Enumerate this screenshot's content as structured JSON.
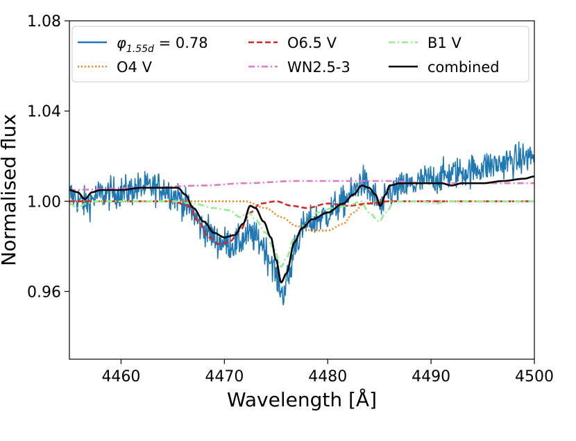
{
  "chart_data": {
    "type": "line",
    "title": "",
    "xlabel": "Wavelength [Å]",
    "ylabel": "Normalised flux",
    "xlim": [
      4455,
      4500
    ],
    "ylim": [
      0.93,
      1.08
    ],
    "xticks": [
      4460,
      4470,
      4480,
      4490,
      4500
    ],
    "xtick_labels": [
      "4460",
      "4470",
      "4480",
      "4490",
      "4500"
    ],
    "yticks": [
      0.96,
      1.0,
      1.04,
      1.08
    ],
    "ytick_labels": [
      "0.96",
      "1.00",
      "1.04",
      "1.08"
    ],
    "grid": false,
    "legend_position": "top",
    "series": [
      {
        "name": "φ1.55d = 0.78",
        "legend_main": "φ",
        "legend_sub": "1.55d",
        "legend_rest": " = 0.78",
        "color": "#1f77b4",
        "style": "solid",
        "kind": "noisy-observed",
        "anchors": [
          [
            4455,
            1.003
          ],
          [
            4456.5,
            0.999
          ],
          [
            4458,
            1.003
          ],
          [
            4460,
            1.004
          ],
          [
            4462,
            1.006
          ],
          [
            4464,
            1.006
          ],
          [
            4465.5,
            1.002
          ],
          [
            4466.5,
            0.997
          ],
          [
            4468,
            0.988
          ],
          [
            4469.5,
            0.982
          ],
          [
            4471,
            0.981
          ],
          [
            4472.5,
            0.985
          ],
          [
            4473.5,
            0.982
          ],
          [
            4474.5,
            0.974
          ],
          [
            4475.2,
            0.965
          ],
          [
            4475.6,
            0.959
          ],
          [
            4476.2,
            0.966
          ],
          [
            4477,
            0.983
          ],
          [
            4478,
            0.99
          ],
          [
            4479.5,
            0.993
          ],
          [
            4481,
            0.998
          ],
          [
            4482.3,
            1.003
          ],
          [
            4483.3,
            1.009
          ],
          [
            4484.3,
            1.003
          ],
          [
            4485.2,
            0.997
          ],
          [
            4486,
            1.004
          ],
          [
            4488,
            1.007
          ],
          [
            4490,
            1.01
          ],
          [
            4493,
            1.013
          ],
          [
            4496,
            1.016
          ],
          [
            4498,
            1.018
          ],
          [
            4500,
            1.02
          ]
        ],
        "noise_amplitude": 0.008,
        "points": 900
      },
      {
        "name": "O4 V",
        "color": "#ff7f0e",
        "style": "dotted",
        "kind": "model",
        "points_data": [
          [
            4455,
            1.0
          ],
          [
            4472,
            1.0
          ],
          [
            4474,
            0.997
          ],
          [
            4475.5,
            0.993
          ],
          [
            4477,
            0.989
          ],
          [
            4478.5,
            0.987
          ],
          [
            4480,
            0.987
          ],
          [
            4481.5,
            0.99
          ],
          [
            4482.5,
            0.995
          ],
          [
            4483.5,
            0.999
          ],
          [
            4485,
            1.0
          ],
          [
            4500,
            1.0
          ]
        ]
      },
      {
        "name": "O6.5 V",
        "color": "#d62728",
        "style": "dashed",
        "kind": "model",
        "points_data": [
          [
            4455,
            1.0
          ],
          [
            4465,
            1.0
          ],
          [
            4466.5,
            0.998
          ],
          [
            4467.5,
            0.991
          ],
          [
            4468.5,
            0.984
          ],
          [
            4469.5,
            0.981
          ],
          [
            4470.5,
            0.982
          ],
          [
            4471.5,
            0.987
          ],
          [
            4472.5,
            0.995
          ],
          [
            4473.5,
            0.999
          ],
          [
            4475,
            1.0
          ],
          [
            4476.5,
            0.998
          ],
          [
            4478,
            0.997
          ],
          [
            4480,
            0.999
          ],
          [
            4482,
            0.998
          ],
          [
            4484,
            0.999
          ],
          [
            4486,
            1.0
          ],
          [
            4500,
            1.0
          ]
        ]
      },
      {
        "name": "WN2.5-3",
        "color": "#e377c2",
        "style": "dashdot",
        "kind": "model",
        "points_data": [
          [
            4455,
            1.005
          ],
          [
            4462,
            1.006
          ],
          [
            4468,
            1.007
          ],
          [
            4472,
            1.008
          ],
          [
            4477,
            1.009
          ],
          [
            4482,
            1.009
          ],
          [
            4486,
            1.009
          ],
          [
            4490,
            1.008
          ],
          [
            4495,
            1.008
          ],
          [
            4500,
            1.008
          ]
        ]
      },
      {
        "name": "B1 V",
        "color": "#90ee90",
        "style": "dashdot",
        "kind": "model",
        "points_data": [
          [
            4455,
            0.999
          ],
          [
            4455.8,
            0.997
          ],
          [
            4456.6,
            0.999
          ],
          [
            4457.5,
            1.0
          ],
          [
            4461,
            1.0
          ],
          [
            4465,
            1.0
          ],
          [
            4467,
            0.999
          ],
          [
            4469,
            0.997
          ],
          [
            4470.5,
            0.996
          ],
          [
            4471.5,
            0.993
          ],
          [
            4472.3,
            0.995
          ],
          [
            4473,
            0.992
          ],
          [
            4474,
            0.986
          ],
          [
            4474.8,
            0.979
          ],
          [
            4475.5,
            0.971
          ],
          [
            4476,
            0.975
          ],
          [
            4476.8,
            0.984
          ],
          [
            4477.8,
            0.99
          ],
          [
            4479,
            0.995
          ],
          [
            4480.5,
            0.997
          ],
          [
            4482,
            0.998
          ],
          [
            4483.2,
            1.0
          ],
          [
            4484,
            0.995
          ],
          [
            4485,
            0.991
          ],
          [
            4485.6,
            0.995
          ],
          [
            4486.5,
            1.0
          ],
          [
            4489,
            1.0
          ],
          [
            4490.5,
            0.999
          ],
          [
            4491.5,
            1.0
          ],
          [
            4500,
            1.0
          ]
        ]
      },
      {
        "name": "combined",
        "color": "#000000",
        "style": "solid",
        "kind": "model",
        "points_data": [
          [
            4455,
            1.005
          ],
          [
            4455.8,
            1.004
          ],
          [
            4456.5,
            1.001
          ],
          [
            4457.2,
            1.004
          ],
          [
            4458,
            1.005
          ],
          [
            4460,
            1.005
          ],
          [
            4462,
            1.006
          ],
          [
            4464,
            1.006
          ],
          [
            4465.5,
            1.006
          ],
          [
            4466.2,
            1.003
          ],
          [
            4467,
            0.997
          ],
          [
            4468,
            0.991
          ],
          [
            4469,
            0.986
          ],
          [
            4470,
            0.984
          ],
          [
            4471,
            0.985
          ],
          [
            4471.8,
            0.99
          ],
          [
            4472.5,
            0.998
          ],
          [
            4473,
            0.997
          ],
          [
            4473.8,
            0.991
          ],
          [
            4474.5,
            0.984
          ],
          [
            4475,
            0.974
          ],
          [
            4475.5,
            0.964
          ],
          [
            4476,
            0.968
          ],
          [
            4476.8,
            0.982
          ],
          [
            4477.5,
            0.988
          ],
          [
            4478.5,
            0.992
          ],
          [
            4480,
            0.995
          ],
          [
            4481.5,
            0.999
          ],
          [
            4482.5,
            1.003
          ],
          [
            4483.3,
            1.007
          ],
          [
            4484,
            1.006
          ],
          [
            4484.6,
            1.003
          ],
          [
            4485.1,
            0.998
          ],
          [
            4485.6,
            1.003
          ],
          [
            4486,
            1.007
          ],
          [
            4487,
            1.008
          ],
          [
            4489,
            1.008
          ],
          [
            4491,
            1.008
          ],
          [
            4492,
            1.007
          ],
          [
            4493,
            1.008
          ],
          [
            4495,
            1.008
          ],
          [
            4497,
            1.009
          ],
          [
            4499,
            1.01
          ],
          [
            4500,
            1.011
          ]
        ]
      }
    ]
  }
}
